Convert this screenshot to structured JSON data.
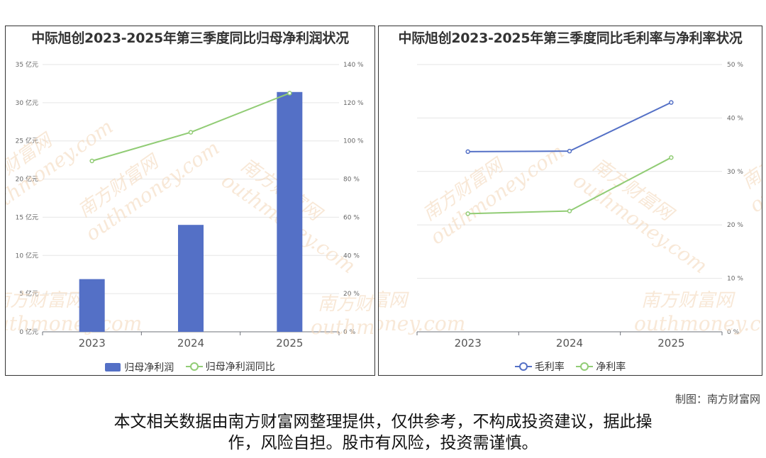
{
  "watermark": {
    "cn": "南方财富网",
    "en": "outhmoney.com"
  },
  "chart_data": [
    {
      "type": "bar+line",
      "title": "中际旭创2023-2025年第三季度同比归母净利润状况",
      "categories": [
        "2023",
        "2024",
        "2025"
      ],
      "y_left": {
        "ticks": [
          "0 亿元",
          "5 亿元",
          "10 亿元",
          "15 亿元",
          "20 亿元",
          "25 亿元",
          "30 亿元",
          "35 亿元"
        ],
        "range": [
          0,
          35
        ]
      },
      "y_right": {
        "ticks": [
          "0 %",
          "20 %",
          "40 %",
          "60 %",
          "80 %",
          "100 %",
          "120 %",
          "140 %"
        ],
        "range": [
          0,
          140
        ]
      },
      "series": [
        {
          "name": "归母净利润",
          "kind": "bar",
          "axis": "left",
          "color": "#5470c6",
          "values": [
            6.9,
            14.0,
            31.4
          ]
        },
        {
          "name": "归母净利润同比",
          "kind": "line",
          "axis": "right",
          "color": "#91cc75",
          "values": [
            89.5,
            104.5,
            125.0
          ]
        }
      ],
      "legend_position": "bottom",
      "grid": true
    },
    {
      "type": "line",
      "title": "中际旭创2023-2025年第三季度同比毛利率与净利率状况",
      "categories": [
        "2023",
        "2024",
        "2025"
      ],
      "y_right": {
        "ticks": [
          "0 %",
          "10 %",
          "20 %",
          "30 %",
          "40 %",
          "50 %"
        ],
        "range": [
          0,
          50
        ]
      },
      "series": [
        {
          "name": "毛利率",
          "kind": "line",
          "axis": "right",
          "color": "#5470c6",
          "values": [
            33.7,
            33.8,
            42.9
          ]
        },
        {
          "name": "净利率",
          "kind": "line",
          "axis": "right",
          "color": "#91cc75",
          "values": [
            22.1,
            22.6,
            32.6
          ]
        }
      ],
      "legend_position": "bottom",
      "grid": true
    }
  ],
  "footer": {
    "credit": "制图：南方财富网",
    "disclaimer_line1": "本文相关数据由南方财富网整理提供，仅供参考，不构成投资建议，据此操",
    "disclaimer_line2": "作，风险自担。股市有风险，投资需谨慎。"
  }
}
